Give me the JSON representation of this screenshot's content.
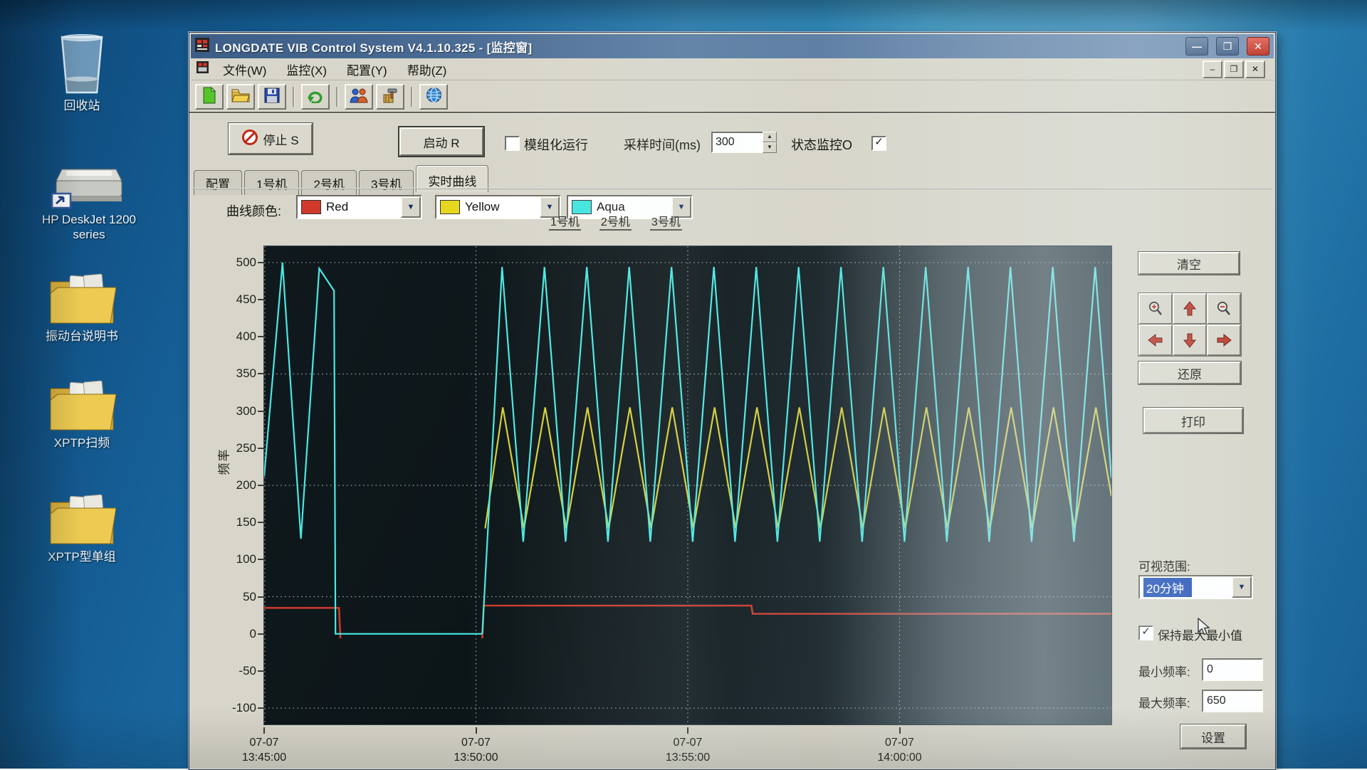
{
  "desktop": {
    "icons": [
      {
        "name": "recycle-bin",
        "label": "回收站",
        "kind": "bin"
      },
      {
        "name": "hp-deskjet-printer",
        "label": "HP DeskJet 1200 series",
        "kind": "printer"
      },
      {
        "name": "folder-vibration-table-manual",
        "label": "振动台说明书",
        "kind": "folder"
      },
      {
        "name": "folder-xptp-sweep",
        "label": "XPTP扫频",
        "kind": "folder"
      },
      {
        "name": "folder-xptp-single-unit",
        "label": "XPTP型单组",
        "kind": "folder"
      }
    ]
  },
  "window": {
    "title": "LONGDATE VIB Control System V4.1.10.325 - [监控窗]",
    "caption_buttons": {
      "minimize": "—",
      "maximize": "❐",
      "close": "✕"
    },
    "menu": [
      {
        "name": "menu-file",
        "label": "文件(W)"
      },
      {
        "name": "menu-monitor",
        "label": "监控(X)"
      },
      {
        "name": "menu-config",
        "label": "配置(Y)"
      },
      {
        "name": "menu-help",
        "label": "帮助(Z)"
      }
    ],
    "toolbar_icons": [
      "new-file-icon",
      "open-folder-icon",
      "save-icon",
      "refresh-icon",
      "users-icon",
      "tools-icon",
      "network-globe-icon"
    ],
    "controls_row": {
      "stop_button": "停止 S",
      "start_button": "启动 R",
      "modular_run_label": "模组化运行",
      "modular_run_checked": false,
      "sample_time_label": "采样时间(ms)",
      "sample_time_value": "300",
      "status_monitor_label": "状态监控O",
      "status_monitor_checked": true,
      "status_monitor_check_glyph": "✓"
    },
    "tabs": [
      {
        "name": "tab-config",
        "label": "配置",
        "active": false
      },
      {
        "name": "tab-machine-1",
        "label": "1号机",
        "active": false
      },
      {
        "name": "tab-machine-2",
        "label": "2号机",
        "active": false
      },
      {
        "name": "tab-machine-3",
        "label": "3号机",
        "active": false
      },
      {
        "name": "tab-realtime-curve",
        "label": "实时曲线",
        "active": true
      }
    ],
    "curve_colors": {
      "label": "曲线颜色:",
      "dropdowns": [
        {
          "name": "curve-color-1",
          "value": "Red",
          "color": "#d0392c"
        },
        {
          "name": "curve-color-2",
          "value": "Yellow",
          "color": "#e6d81f"
        },
        {
          "name": "curve-color-3",
          "value": "Aqua",
          "color": "#3fe4de"
        }
      ]
    },
    "legend_buttons": [
      {
        "name": "legend-machine-1",
        "label": "1号机"
      },
      {
        "name": "legend-machine-2",
        "label": "2号机"
      },
      {
        "name": "legend-machine-3",
        "label": "3号机"
      }
    ],
    "right_panel": {
      "clear_button": "清空",
      "restore_button": "还原",
      "print_button": "打印",
      "visible_range_label": "可视范围:",
      "visible_range_value": "20分钟",
      "keep_minmax_label": "保持最大最小值",
      "keep_minmax_checked": true,
      "keep_minmax_check_glyph": "✓",
      "min_freq_label": "最小频率:",
      "min_freq_value": "0",
      "max_freq_label": "最大频率:",
      "max_freq_value": "650",
      "settings_button": "设置"
    }
  },
  "chart_data": {
    "type": "line",
    "title": "",
    "ylabel": "频率",
    "ylim": [
      -122,
      522
    ],
    "yticks": [
      500,
      450,
      400,
      350,
      300,
      250,
      200,
      150,
      100,
      50,
      0,
      -50,
      -100
    ],
    "grid_y": [
      500,
      350,
      200,
      50,
      -100
    ],
    "x_domain_seconds": [
      0,
      1200
    ],
    "grid_x_seconds": [
      0,
      300,
      600,
      900
    ],
    "xticks": [
      {
        "t": 0,
        "date": "07-07",
        "time": "13:45:00"
      },
      {
        "t": 300,
        "date": "07-07",
        "time": "13:50:00"
      },
      {
        "t": 600,
        "date": "07-07",
        "time": "13:55:00"
      },
      {
        "t": 900,
        "date": "07-07",
        "time": "14:00:00"
      }
    ],
    "legend_position": "top",
    "grid": "dotted",
    "series": [
      {
        "name": "1号机",
        "color": "#c93a2e",
        "width": 2.6,
        "segments": [
          [
            [
              0,
              35
            ],
            [
              106,
              35
            ],
            [
              108,
              -6
            ]
          ],
          [
            [
              309,
              -6
            ],
            [
              311,
              38
            ],
            [
              690,
              38
            ],
            [
              692,
              27
            ],
            [
              1200,
              27
            ]
          ]
        ]
      },
      {
        "name": "2号机",
        "color": "#d6ce33",
        "width": 2.2,
        "triangle": {
          "lead_in": [
            [
              313,
              142
            ]
          ],
          "first_peak_t": 338,
          "period": 60,
          "peak": 305,
          "trough": 142,
          "t_end": 1200
        }
      },
      {
        "name": "3号机",
        "color": "#47e9e3",
        "width": 2.2,
        "segments": [
          [
            [
              0,
              212
            ],
            [
              26,
              500
            ],
            [
              52,
              128
            ],
            [
              78,
              492
            ],
            [
              99,
              462
            ],
            [
              101,
              0
            ],
            [
              309,
              0
            ]
          ]
        ],
        "triangle": {
          "lead_in": [
            [
              309,
              0
            ]
          ],
          "first_peak_t": 337,
          "period": 60,
          "peak": 494,
          "trough": 124,
          "t_end": 1200
        }
      }
    ]
  }
}
